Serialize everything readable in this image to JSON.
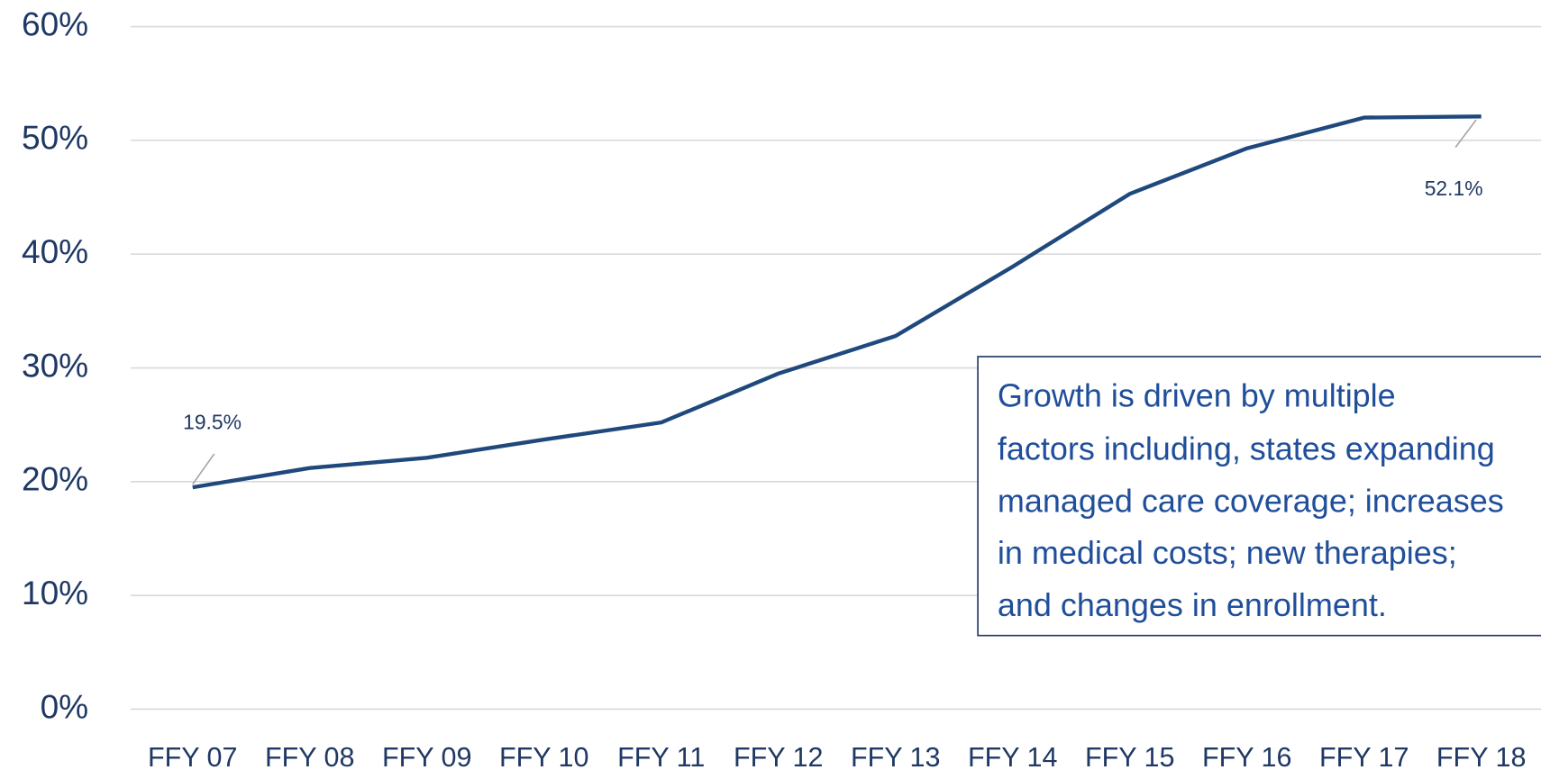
{
  "chart_data": {
    "type": "line",
    "categories": [
      "FFY 07",
      "FFY 08",
      "FFY 09",
      "FFY 10",
      "FFY 11",
      "FFY 12",
      "FFY 13",
      "FFY 14",
      "FFY 15",
      "FFY 16",
      "FFY 17",
      "FFY 18"
    ],
    "values": [
      19.5,
      21.2,
      22.1,
      23.7,
      25.2,
      29.5,
      32.8,
      38.9,
      45.3,
      49.3,
      52.0,
      52.1
    ],
    "value_labels": [
      "19.5%",
      null,
      null,
      null,
      null,
      null,
      null,
      null,
      null,
      null,
      null,
      "52.1%"
    ],
    "color": "#1f497d",
    "ylim": [
      0,
      60
    ],
    "yticks": [
      {
        "value": 0,
        "label": "0%"
      },
      {
        "value": 10,
        "label": "10%"
      },
      {
        "value": 20,
        "label": "20%"
      },
      {
        "value": 30,
        "label": "30%"
      },
      {
        "value": 40,
        "label": "40%"
      },
      {
        "value": 50,
        "label": "50%"
      },
      {
        "value": 60,
        "label": "60%"
      }
    ],
    "grid": true,
    "annotation": [
      "Growth is driven by multiple",
      "factors including, states expanding",
      "managed care coverage; increases",
      "in medical costs; new therapies;",
      "and changes in enrollment."
    ]
  }
}
